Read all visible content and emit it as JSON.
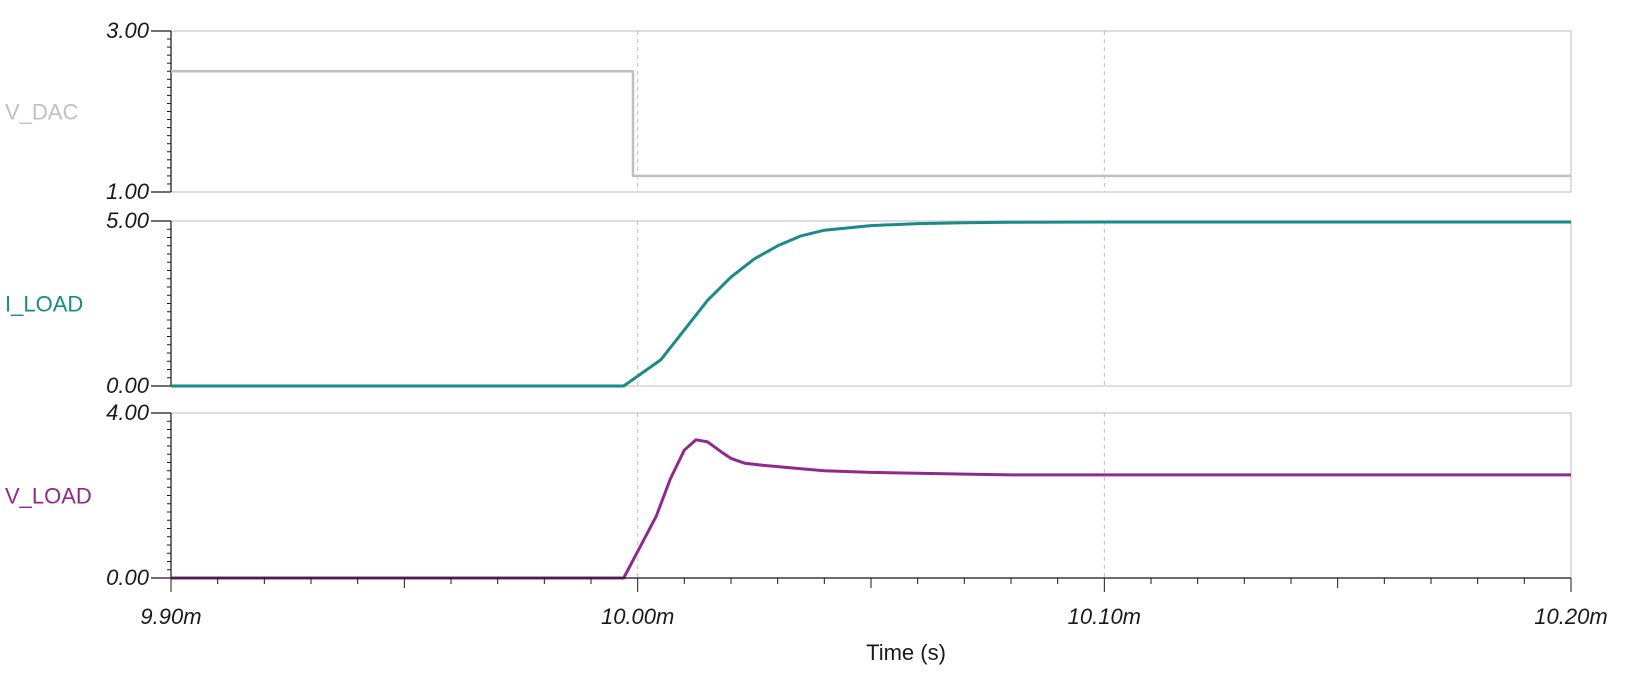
{
  "chart_data": {
    "type": "line",
    "xlabel": "Time (s)",
    "x_range": [
      9.9,
      10.2
    ],
    "x_ticks": [
      "9.90m",
      "10.00m",
      "10.10m",
      "10.20m"
    ],
    "x_tick_values": [
      9.9,
      10.0,
      10.1,
      10.2
    ],
    "grid": "vertical dashed at major x ticks",
    "panels": [
      {
        "name": "V_DAC",
        "color": "#c0c0c0",
        "ylim": [
          1.0,
          3.0
        ],
        "y_ticks": [
          "3.00",
          "1.00"
        ],
        "y_tick_values": [
          3.0,
          1.0
        ],
        "x": [
          9.9,
          9.999,
          9.999,
          10.2
        ],
        "values": [
          2.5,
          2.5,
          1.2,
          1.2
        ]
      },
      {
        "name": "I_LOAD",
        "color": "#1a8a8a",
        "ylim": [
          0.0,
          5.0
        ],
        "y_ticks": [
          "5.00",
          "0.00"
        ],
        "y_tick_values": [
          5.0,
          0.0
        ],
        "x": [
          9.9,
          9.997,
          10.0,
          10.005,
          10.01,
          10.015,
          10.02,
          10.025,
          10.03,
          10.035,
          10.04,
          10.05,
          10.06,
          10.07,
          10.08,
          10.1,
          10.2
        ],
        "values": [
          0.0,
          0.0,
          0.3,
          0.8,
          1.7,
          2.6,
          3.3,
          3.85,
          4.25,
          4.55,
          4.72,
          4.86,
          4.92,
          4.95,
          4.96,
          4.97,
          4.97
        ]
      },
      {
        "name": "V_LOAD",
        "color": "#8e2a8e",
        "ylim": [
          0.0,
          4.0
        ],
        "y_ticks": [
          "4.00",
          "0.00"
        ],
        "y_tick_values": [
          4.0,
          0.0
        ],
        "x": [
          9.9,
          9.997,
          10.004,
          10.007,
          10.01,
          10.0125,
          10.015,
          10.018,
          10.02,
          10.023,
          10.027,
          10.03,
          10.035,
          10.04,
          10.05,
          10.06,
          10.07,
          10.08,
          10.1,
          10.2
        ],
        "values": [
          0.0,
          0.0,
          1.5,
          2.4,
          3.1,
          3.35,
          3.3,
          3.05,
          2.9,
          2.78,
          2.73,
          2.7,
          2.65,
          2.6,
          2.56,
          2.54,
          2.52,
          2.5,
          2.5,
          2.5
        ]
      }
    ]
  }
}
